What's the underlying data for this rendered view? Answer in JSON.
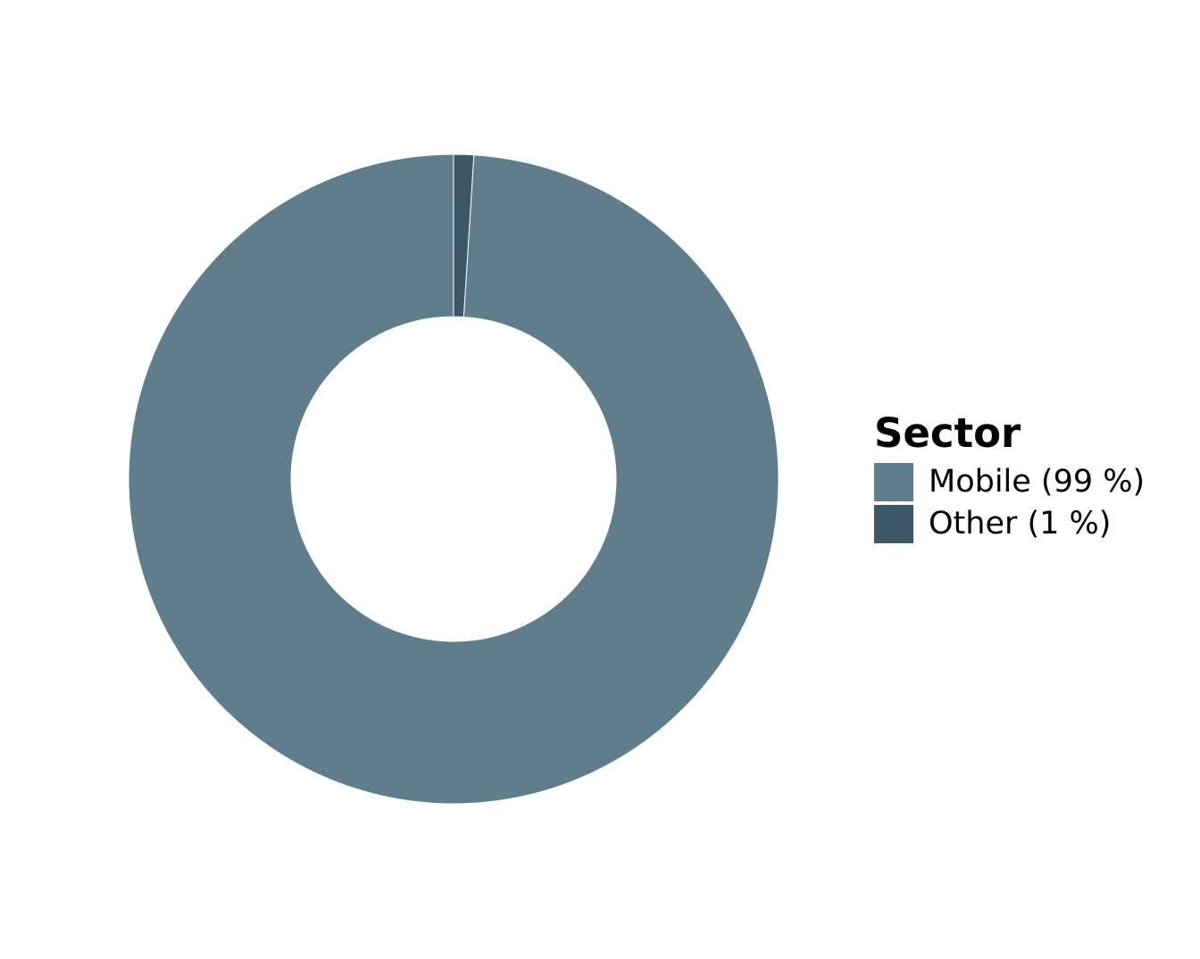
{
  "chart_data": {
    "type": "pie",
    "donut": true,
    "legend_title": "Sector",
    "legend_position": "right",
    "slices": [
      {
        "label": "Mobile (99 %)",
        "name": "Mobile",
        "value": 99,
        "color": "#607d8e"
      },
      {
        "label": "Other (1 %)",
        "name": "Other",
        "value": 1,
        "color": "#3d5668"
      }
    ]
  }
}
